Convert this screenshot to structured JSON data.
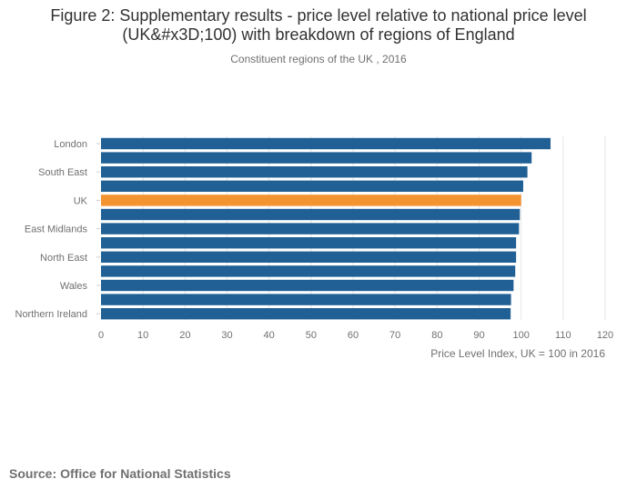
{
  "title_line1": "Figure 2: Supplementary results - price level relative to national price level",
  "title_line2": "(UK&#x3D;100) with breakdown of regions of England",
  "subtitle": "Constituent regions of the UK , 2016",
  "source": {
    "label": "Source:",
    "text": "Office for National Statistics"
  },
  "colors": {
    "bar": "#206095",
    "highlight": "#F39431",
    "grid": "#e6e6e6",
    "axis_text": "#707071",
    "label_text": "#323132"
  },
  "chart_data": {
    "type": "bar",
    "orientation": "horizontal",
    "categories": [
      "London",
      "",
      "South East",
      "",
      "UK",
      "",
      "East Midlands",
      "",
      "North East",
      "",
      "Wales",
      "",
      "Northern Ireland"
    ],
    "values": [
      107,
      102.5,
      101.5,
      100.5,
      100,
      99.7,
      99.5,
      98.8,
      98.8,
      98.6,
      98.2,
      97.6,
      97.5
    ],
    "highlight_category": "UK",
    "highlight_index": 4,
    "xlim": [
      0,
      120
    ],
    "xticks": [
      0,
      10,
      20,
      30,
      40,
      50,
      60,
      70,
      80,
      90,
      100,
      110,
      120
    ],
    "xlabel": "Price Level Index, UK = 100 in 2016",
    "ylabel": "",
    "grid": true
  }
}
